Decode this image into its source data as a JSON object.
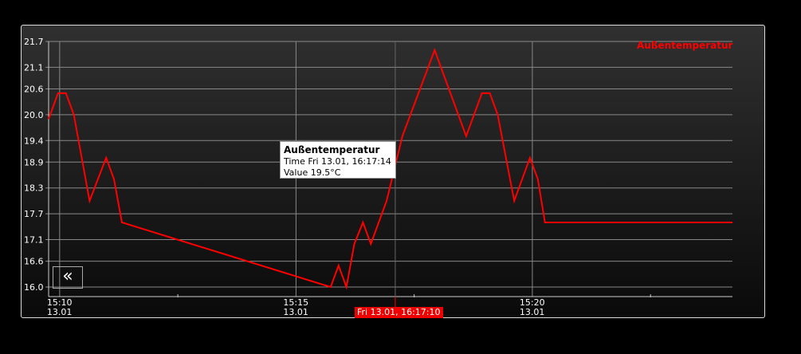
{
  "chart_data": {
    "type": "line",
    "title": "",
    "xlabel": "",
    "ylabel": "",
    "legend": {
      "entries": [
        "Außentemperatur"
      ],
      "placement": "top-right"
    },
    "grid": true,
    "ylim": [
      16.0,
      21.7
    ],
    "xlim": [
      "15:09:46",
      "15:24:14"
    ],
    "y_ticks": [
      "16.0",
      "16.6",
      "17.1",
      "17.7",
      "18.3",
      "18.9",
      "19.4",
      "20.0",
      "20.6",
      "21.1",
      "21.7"
    ],
    "x_ticks": [
      {
        "time": "15:10",
        "date": "13.01"
      },
      {
        "time": "15:15",
        "date": "13.01"
      },
      {
        "time": "15:20",
        "date": "13.01"
      }
    ],
    "series": [
      {
        "name": "Außentemperatur",
        "color": "#ff0000",
        "x": [
          "15:09:46",
          "15:09:58",
          "15:10:08",
          "15:10:18",
          "15:10:38",
          "15:10:59",
          "15:11:09",
          "15:11:19",
          "15:15:44",
          "15:15:54",
          "15:16:04",
          "15:16:14",
          "15:16:25",
          "15:16:35",
          "15:16:55",
          "15:17:15",
          "15:17:56",
          "15:18:36",
          "15:18:56",
          "15:19:06",
          "15:19:16",
          "15:19:37",
          "15:19:57",
          "15:20:07",
          "15:20:16",
          "15:24:14"
        ],
        "y": [
          19.9,
          20.5,
          20.5,
          20.0,
          18.0,
          19.0,
          18.5,
          17.5,
          16.0,
          16.5,
          16.0,
          17.0,
          17.5,
          17.0,
          18.0,
          19.5,
          21.5,
          19.5,
          20.5,
          20.5,
          20.0,
          18.0,
          19.0,
          18.5,
          17.5,
          17.5
        ]
      }
    ],
    "cursor_time": "15:17:06",
    "tooltip": {
      "title": "Außentemperatur",
      "time": "Time Fri 13.01, 16:17:14",
      "value": "Value 19.5°C"
    },
    "cursor_label": "Fri 13.01, 16:17:10"
  },
  "controls": {
    "back_label": "«"
  }
}
